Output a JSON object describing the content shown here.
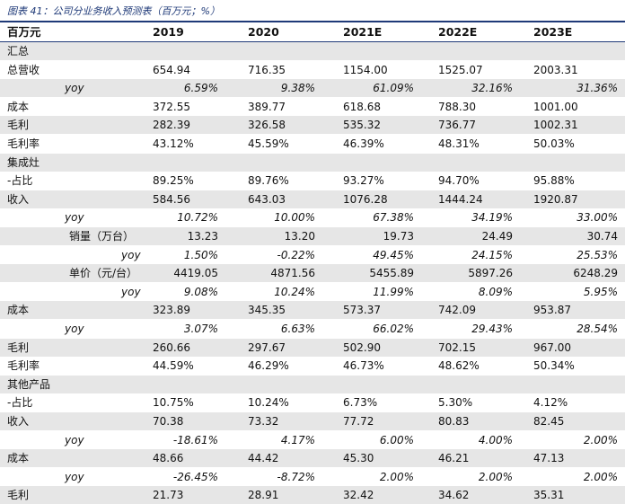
{
  "caption": "图表 41：公司分业务收入预测表（百万元；%）",
  "header": {
    "label": "百万元",
    "years": [
      "2019",
      "2020",
      "2021E",
      "2022E",
      "2023E"
    ]
  },
  "rows": [
    {
      "label": "汇总",
      "values": [],
      "style": "section"
    },
    {
      "label": "总营收",
      "values": [
        "654.94",
        "716.35",
        "1154.00",
        "1525.07",
        "2003.31"
      ],
      "style": ""
    },
    {
      "label": "yoy",
      "values": [
        "6.59%",
        "9.38%",
        "61.09%",
        "32.16%",
        "31.36%"
      ],
      "style": "yoy"
    },
    {
      "label": "成本",
      "values": [
        "372.55",
        "389.77",
        "618.68",
        "788.30",
        "1001.00"
      ],
      "style": ""
    },
    {
      "label": "毛利",
      "values": [
        "282.39",
        "326.58",
        "535.32",
        "736.77",
        "1002.31"
      ],
      "style": ""
    },
    {
      "label": "毛利率",
      "values": [
        "43.12%",
        "45.59%",
        "46.39%",
        "48.31%",
        "50.03%"
      ],
      "style": ""
    },
    {
      "label": "集成灶",
      "values": [],
      "style": "section"
    },
    {
      "label": "-占比",
      "values": [
        "89.25%",
        "89.76%",
        "93.27%",
        "94.70%",
        "95.88%"
      ],
      "style": ""
    },
    {
      "label": "收入",
      "values": [
        "584.56",
        "643.03",
        "1076.28",
        "1444.24",
        "1920.87"
      ],
      "style": ""
    },
    {
      "label": "yoy",
      "values": [
        "10.72%",
        "10.00%",
        "67.38%",
        "34.19%",
        "33.00%"
      ],
      "style": "yoy"
    },
    {
      "label": "销量（万台）",
      "values": [
        "13.23",
        "13.20",
        "19.73",
        "24.49",
        "30.74"
      ],
      "style": "sub"
    },
    {
      "label": "yoy",
      "values": [
        "1.50%",
        "-0.22%",
        "49.45%",
        "24.15%",
        "25.53%"
      ],
      "style": "subyoy"
    },
    {
      "label": "单价（元/台）",
      "values": [
        "4419.05",
        "4871.56",
        "5455.89",
        "5897.26",
        "6248.29"
      ],
      "style": "sub"
    },
    {
      "label": "yoy",
      "values": [
        "9.08%",
        "10.24%",
        "11.99%",
        "8.09%",
        "5.95%"
      ],
      "style": "subyoy"
    },
    {
      "label": "成本",
      "values": [
        "323.89",
        "345.35",
        "573.37",
        "742.09",
        "953.87"
      ],
      "style": ""
    },
    {
      "label": "yoy",
      "values": [
        "3.07%",
        "6.63%",
        "66.02%",
        "29.43%",
        "28.54%"
      ],
      "style": "yoy"
    },
    {
      "label": "毛利",
      "values": [
        "260.66",
        "297.67",
        "502.90",
        "702.15",
        "967.00"
      ],
      "style": ""
    },
    {
      "label": "毛利率",
      "values": [
        "44.59%",
        "46.29%",
        "46.73%",
        "48.62%",
        "50.34%"
      ],
      "style": ""
    },
    {
      "label": "其他产品",
      "values": [],
      "style": "section"
    },
    {
      "label": "-占比",
      "values": [
        "10.75%",
        "10.24%",
        "6.73%",
        "5.30%",
        "4.12%"
      ],
      "style": ""
    },
    {
      "label": "收入",
      "values": [
        "70.38",
        "73.32",
        "77.72",
        "80.83",
        "82.45"
      ],
      "style": ""
    },
    {
      "label": "yoy",
      "values": [
        "-18.61%",
        "4.17%",
        "6.00%",
        "4.00%",
        "2.00%"
      ],
      "style": "yoy"
    },
    {
      "label": "成本",
      "values": [
        "48.66",
        "44.42",
        "45.30",
        "46.21",
        "47.13"
      ],
      "style": ""
    },
    {
      "label": "yoy",
      "values": [
        "-26.45%",
        "-8.72%",
        "2.00%",
        "2.00%",
        "2.00%"
      ],
      "style": "yoy"
    },
    {
      "label": "毛利",
      "values": [
        "21.73",
        "28.91",
        "32.42",
        "34.62",
        "35.31"
      ],
      "style": ""
    }
  ]
}
